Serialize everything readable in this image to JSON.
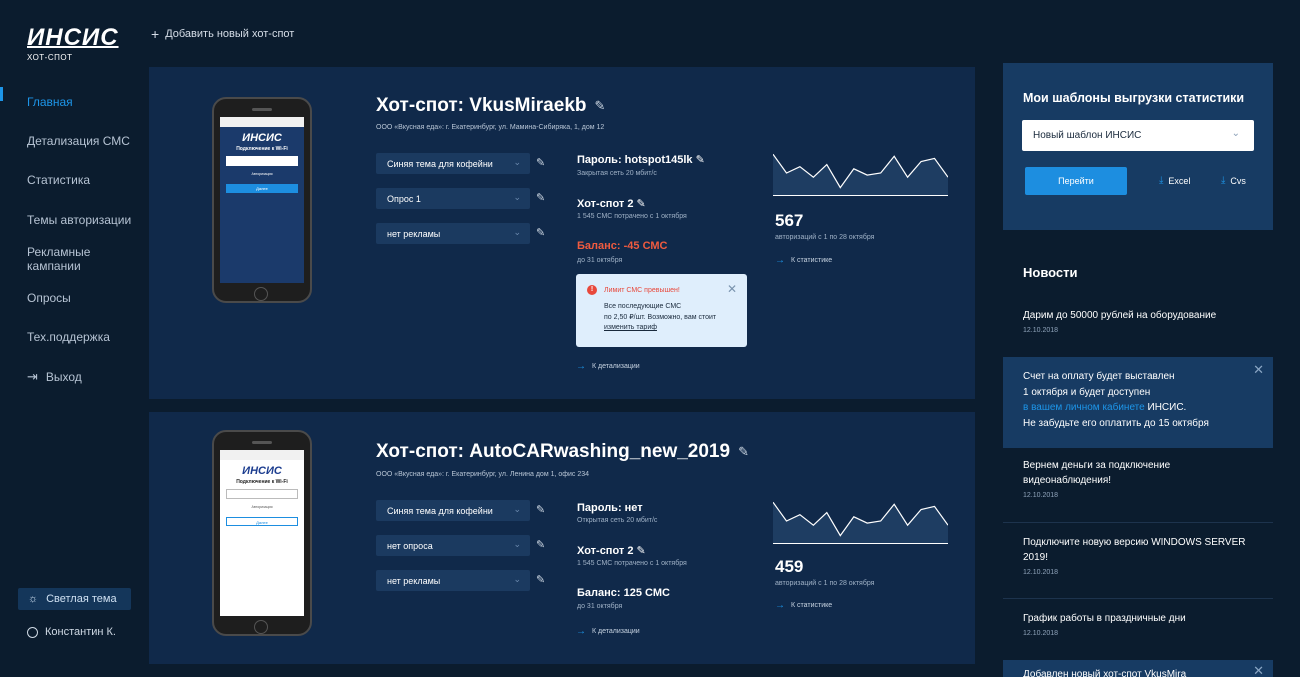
{
  "logo": {
    "main": "ИНСИС",
    "sub": "ХОТ-СПОТ"
  },
  "header": {
    "add_hotspot": "Добавить новый хот-спот"
  },
  "sidebar": {
    "items": [
      {
        "label": "Главная"
      },
      {
        "label": "Детализация СМС"
      },
      {
        "label": "Статистика"
      },
      {
        "label": "Темы авторизации"
      },
      {
        "label": "Рекламные кампании"
      },
      {
        "label": "Опросы"
      },
      {
        "label": "Тех.поддержка"
      },
      {
        "label": "Выход"
      }
    ],
    "theme_button": "Светлая тема",
    "user": "Константин К."
  },
  "hotspots": [
    {
      "title": "Хот-спот: VkusMiraekb",
      "address": "ООО «Вкусная еда»: г. Екатеринбург, ул. Мамина-Сибиряка, 1, дом 12",
      "selects": [
        "Синяя тема для кофейни",
        "Опрос 1",
        "нет рекламы"
      ],
      "password": "Пароль: hotspot145lk",
      "network": "Закрытая сеть 20 мбит/с",
      "hotspot_name": "Хот-спот 2",
      "sms_spent": "1 545 СМС потрачено с 1 октября",
      "balance": "Баланс: -45 СМС",
      "balance_until": "до 31 октября",
      "details_link": "К детализации",
      "auth_count": "567",
      "auth_period": "авторизаций с 1  по 28 октября",
      "stats_link": "К статистике",
      "alert": {
        "title": "Лимит СМС превышен!",
        "text_lines": [
          "Все последующие СМС",
          "по 2,50 ₽/шт. Возможно, вам стоит"
        ],
        "link": "изменить тариф"
      },
      "phone": {
        "brand": "ИНСИС",
        "title": "Подключение к Wi-Fi",
        "auth": "Авторизация",
        "button": "Далее"
      },
      "chart_data": {
        "type": "line",
        "values": [
          40,
          22,
          28,
          18,
          30,
          8,
          26,
          20,
          22,
          38,
          18,
          33,
          36,
          18
        ]
      }
    },
    {
      "title": "Хот-спот: AutoCARwashing_new_2019",
      "address": "ООО «Вкусная еда»: г. Екатеринбург, ул. Ленина дом 1, офис 234",
      "selects": [
        "Синяя тема для кофейни",
        "нет опроса",
        "нет рекламы"
      ],
      "password": "Пароль: нет",
      "network": "Открытая сеть 20 мбит/с",
      "hotspot_name": "Хот-спот 2",
      "sms_spent": "1 545 СМС потрачено с 1 октября",
      "balance": "Баланс: 125 СМС",
      "balance_until": "до 31 октября",
      "details_link": "К детализации",
      "auth_count": "459",
      "auth_period": "авторизаций с 1  по 28 октября",
      "stats_link": "К статистике",
      "phone": {
        "brand": "ИНСИС",
        "title": "Подключение к Wi-Fi",
        "auth": "Авторизация",
        "button": "Далее"
      },
      "chart_data": {
        "type": "line",
        "values": [
          40,
          22,
          28,
          18,
          30,
          8,
          26,
          20,
          22,
          38,
          18,
          33,
          36,
          18
        ]
      }
    }
  ],
  "templates": {
    "title": "Мои шаблоны выгрузки статистики",
    "selected": "Новый шаблон ИНСИС",
    "go_button": "Перейти",
    "excel": "Excel",
    "cvs": "Cvs"
  },
  "news": {
    "title": "Новости",
    "items": [
      {
        "title": "Дарим до 50000 рублей на оборудование",
        "date": "12.10.2018"
      },
      {
        "title": "Вернем деньги за подключение видеонаблюдения!",
        "date": "12.10.2018"
      },
      {
        "title": "Подключите новую версию WINDOWS SERVER 2019!",
        "date": "12.10.2018"
      },
      {
        "title": "График работы в праздничные дни",
        "date": "12.10.2018"
      }
    ],
    "notice": {
      "line1": "Счет на оплату будет выставлен",
      "line2": "1 октября и будет доступен",
      "link": "в вашем личном кабинете",
      "brand": "ИНСИС.",
      "line4": "Не забудьте его оплатить до 15 октября"
    },
    "notice2": "Добавлен новый хот-спот VkusMira"
  },
  "colors": {
    "background": "#0b1c2e",
    "card": "#10294a",
    "accent": "#1d95e8",
    "alert": "#f05b3f"
  }
}
